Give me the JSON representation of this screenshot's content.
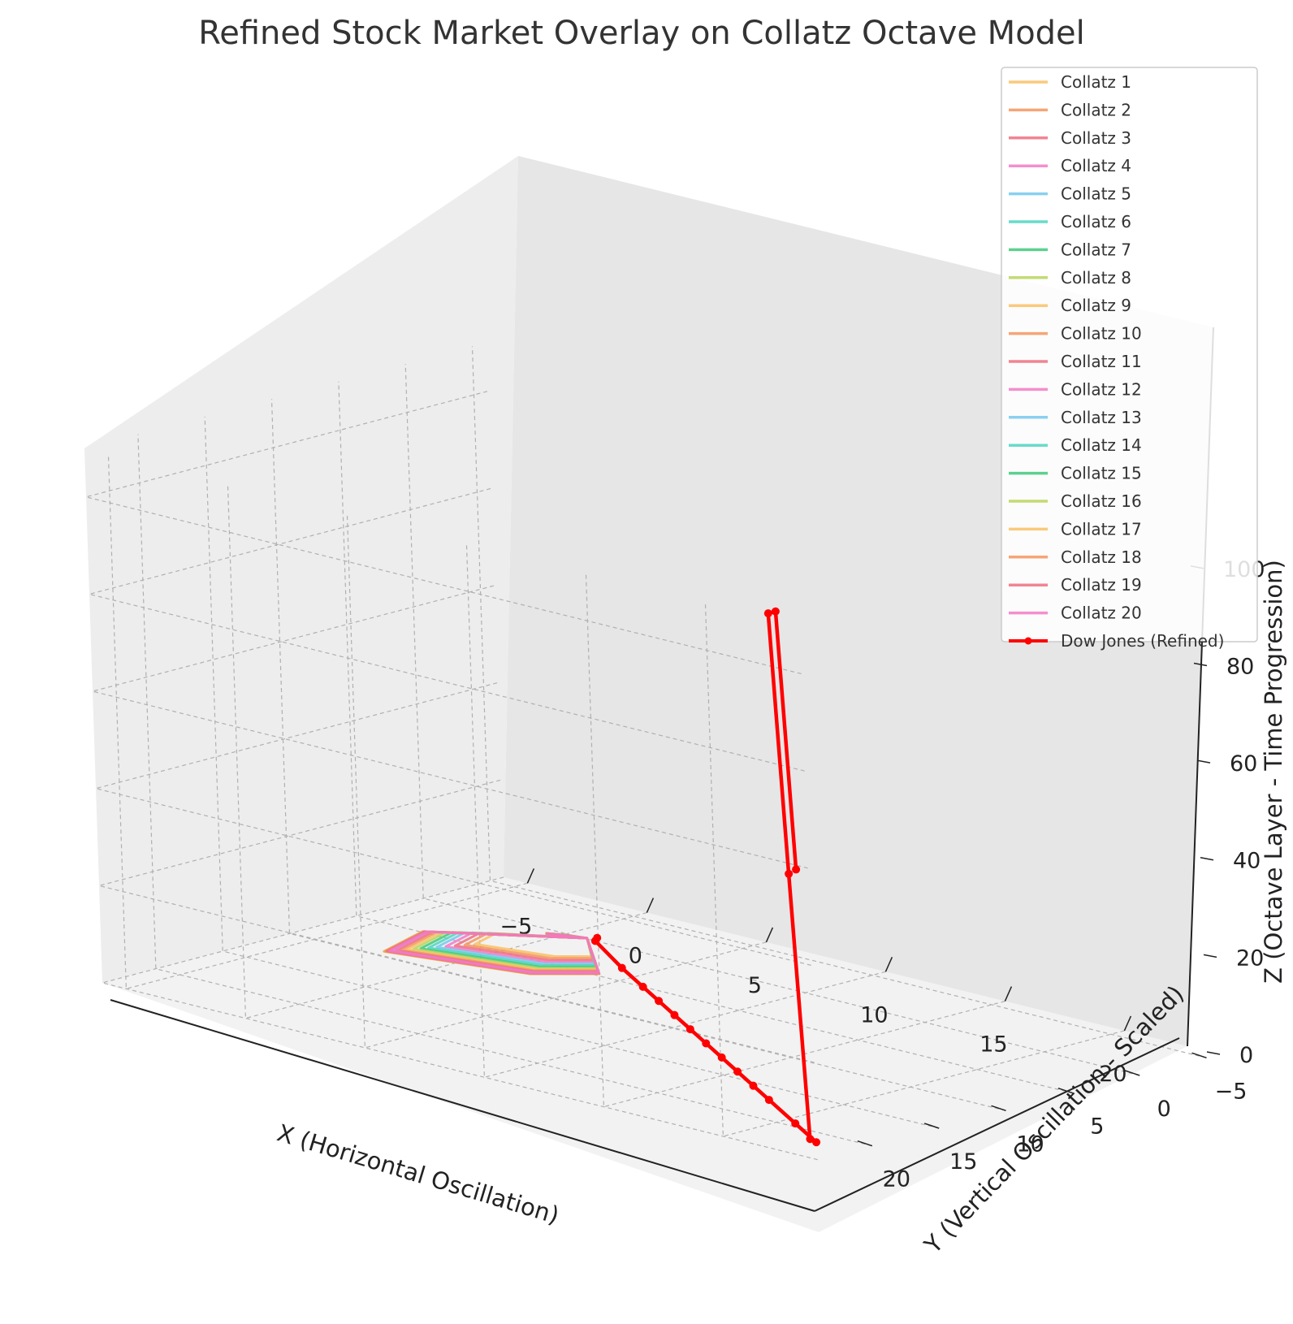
{
  "chart_data": {
    "type": "line",
    "title": "Refined Stock Market Overlay on Collatz Octave Model",
    "xlabel": "X (Horizontal Oscillation)",
    "ylabel": "Y (Vertical Oscillation - Scaled)",
    "zlabel": "Z (Octave Layer - Time Progression)",
    "xlim": [
      -6,
      24
    ],
    "ylim": [
      -6,
      24
    ],
    "zlim": [
      0,
      110
    ],
    "x_ticks": [
      "−5",
      "0",
      "5",
      "10",
      "15",
      "20"
    ],
    "y_ticks": [
      "−5",
      "0",
      "5",
      "10",
      "15",
      "20"
    ],
    "z_ticks": [
      "0",
      "20",
      "40",
      "60",
      "80",
      "100"
    ],
    "grid": true,
    "legend_position": "top-right",
    "colors": {
      "palette": [
        "#f9c165",
        "#f5955f",
        "#ee6f80",
        "#f27ac6",
        "#76c8ee",
        "#4dd6c0",
        "#40c97a",
        "#b9d55b"
      ],
      "dow": "#ff0000"
    },
    "collatz_series": [
      {
        "name": "Collatz 1"
      },
      {
        "name": "Collatz 2"
      },
      {
        "name": "Collatz 3"
      },
      {
        "name": "Collatz 4"
      },
      {
        "name": "Collatz 5"
      },
      {
        "name": "Collatz 6"
      },
      {
        "name": "Collatz 7"
      },
      {
        "name": "Collatz 8"
      },
      {
        "name": "Collatz 9"
      },
      {
        "name": "Collatz 10"
      },
      {
        "name": "Collatz 11"
      },
      {
        "name": "Collatz 12"
      },
      {
        "name": "Collatz 13"
      },
      {
        "name": "Collatz 14"
      },
      {
        "name": "Collatz 15"
      },
      {
        "name": "Collatz 16"
      },
      {
        "name": "Collatz 17"
      },
      {
        "name": "Collatz 18"
      },
      {
        "name": "Collatz 19"
      },
      {
        "name": "Collatz 20"
      }
    ],
    "dow_series": {
      "name": "Dow Jones (Refined)",
      "points": [
        [
          1.0,
          -0.5,
          0.0
        ],
        [
          1.2,
          0.0,
          0.0
        ],
        [
          4.0,
          3.0,
          0.0
        ],
        [
          6.0,
          5.0,
          0.0
        ],
        [
          7.5,
          6.5,
          0.0
        ],
        [
          9.0,
          8.0,
          0.0
        ],
        [
          10.5,
          9.5,
          0.0
        ],
        [
          12.0,
          11.0,
          0.0
        ],
        [
          13.5,
          12.5,
          0.0
        ],
        [
          15.0,
          14.0,
          0.0
        ],
        [
          16.5,
          15.5,
          0.0
        ],
        [
          18.0,
          17.0,
          0.0
        ],
        [
          20.5,
          19.5,
          0.0
        ],
        [
          22.5,
          21.5,
          0.0
        ],
        [
          22.3,
          21.6,
          0.5
        ],
        [
          22.0,
          22.0,
          55.0
        ],
        [
          21.5,
          22.0,
          108.0
        ],
        [
          21.7,
          21.8,
          108.5
        ],
        [
          22.2,
          21.8,
          56.0
        ]
      ]
    }
  }
}
